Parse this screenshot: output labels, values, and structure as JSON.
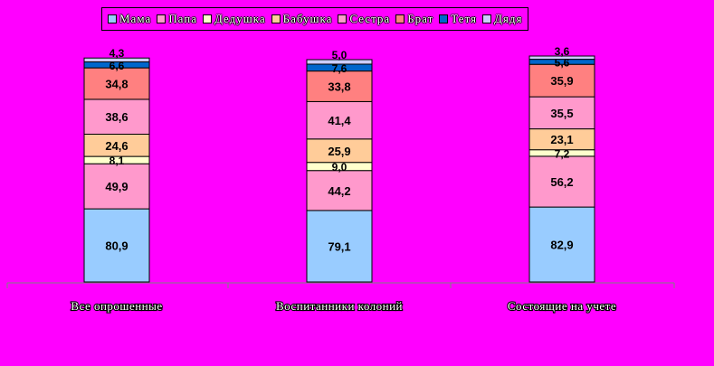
{
  "chart_data": {
    "type": "bar",
    "stacked": true,
    "title": "",
    "xlabel": "",
    "ylabel": "",
    "legend_position": "top",
    "categories": [
      "Все опрошенные",
      "Воспитанники колоний",
      "Состоящие на учете"
    ],
    "series": [
      {
        "name": "Мама",
        "color": "#99ccff",
        "values": [
          80.9,
          79.1,
          82.9
        ]
      },
      {
        "name": "Папа",
        "color": "#ff99cc",
        "values": [
          49.9,
          44.2,
          56.2
        ]
      },
      {
        "name": "Дедушка",
        "color": "#ffffcc",
        "values": [
          8.1,
          9.0,
          7.2
        ]
      },
      {
        "name": "Бабушка",
        "color": "#ffcc99",
        "values": [
          24.6,
          25.9,
          23.1
        ]
      },
      {
        "name": "Сестра",
        "color": "#ff99cc",
        "values": [
          38.6,
          41.4,
          35.5
        ]
      },
      {
        "name": "Брат",
        "color": "#ff8080",
        "values": [
          34.8,
          33.8,
          35.9
        ]
      },
      {
        "name": "Тетя",
        "color": "#0066cc",
        "values": [
          6.6,
          7.6,
          5.6
        ]
      },
      {
        "name": "Дядя",
        "color": "#ccccff",
        "values": [
          4.3,
          5.0,
          3.6
        ]
      }
    ],
    "data_labels": [
      [
        "80,9",
        "49,9",
        "8,1",
        "24,6",
        "38,6",
        "34,8",
        "6,6",
        "4,3"
      ],
      [
        "79,1",
        "44,2",
        "9,0",
        "25,9",
        "41,4",
        "33,8",
        "7,6",
        "5,0"
      ],
      [
        "82,9",
        "56,2",
        "7,2",
        "23,1",
        "35,5",
        "35,9",
        "5,6",
        "3,6"
      ]
    ]
  }
}
